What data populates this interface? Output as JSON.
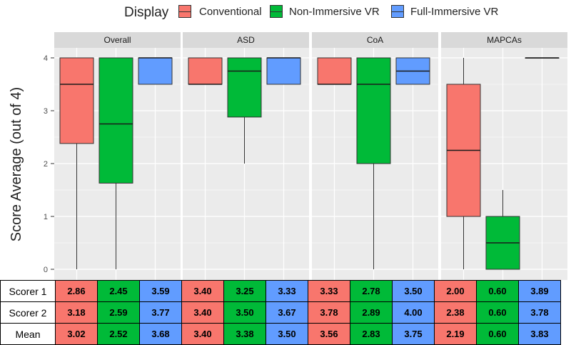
{
  "legend": {
    "title": "Display",
    "items": [
      {
        "label": "Conventional",
        "color": "#F8766D"
      },
      {
        "label": "Non-Immersive VR",
        "color": "#00BA38"
      },
      {
        "label": "Full-Immersive VR",
        "color": "#619CFF"
      }
    ]
  },
  "chart_data": {
    "type": "boxplot",
    "ylabel": "Score Average (out of 4)",
    "ylim": [
      -0.1,
      4.4
    ],
    "yticks": [
      "0",
      "1",
      "2",
      "3",
      "4"
    ],
    "grid": true,
    "legend_position": "top",
    "facets": [
      "Overall",
      "ASD",
      "CoA",
      "MAPCAs"
    ],
    "series": [
      "Conventional",
      "Non-Immersive VR",
      "Full-Immersive VR"
    ],
    "boxes": [
      [
        {
          "min": 0,
          "q1": 2.38,
          "median": 3.5,
          "q3": 4,
          "max": 4
        },
        {
          "min": 0,
          "q1": 1.63,
          "median": 2.75,
          "q3": 4,
          "max": 4
        },
        {
          "min": 3.5,
          "q1": 3.5,
          "median": 4,
          "q3": 4,
          "max": 4
        }
      ],
      [
        {
          "min": 3.5,
          "q1": 3.5,
          "median": 3.5,
          "q3": 4,
          "max": 4
        },
        {
          "min": 2,
          "q1": 2.88,
          "median": 3.75,
          "q3": 4,
          "max": 4
        },
        {
          "min": 3.5,
          "q1": 3.5,
          "median": 4,
          "q3": 4,
          "max": 4
        }
      ],
      [
        {
          "min": 3.5,
          "q1": 3.5,
          "median": 3.5,
          "q3": 4,
          "max": 4
        },
        {
          "min": 0,
          "q1": 2,
          "median": 3.5,
          "q3": 4,
          "max": 4
        },
        {
          "min": 3.5,
          "q1": 3.5,
          "median": 3.75,
          "q3": 4,
          "max": 4
        }
      ],
      [
        {
          "min": 0,
          "q1": 1,
          "median": 2.25,
          "q3": 3.5,
          "max": 4
        },
        {
          "min": 0,
          "q1": 0,
          "median": 0.5,
          "q3": 1,
          "max": 1.5
        },
        {
          "min": 4,
          "q1": 4,
          "median": 4,
          "q3": 4,
          "max": 4
        }
      ]
    ]
  },
  "table": {
    "rows": [
      {
        "label": "Scorer 1",
        "values": [
          "2.86",
          "2.45",
          "3.59",
          "3.40",
          "3.25",
          "3.33",
          "3.33",
          "2.78",
          "3.50",
          "2.00",
          "0.60",
          "3.89"
        ]
      },
      {
        "label": "Scorer 2",
        "values": [
          "3.18",
          "2.59",
          "3.77",
          "3.40",
          "3.50",
          "3.67",
          "3.78",
          "2.89",
          "4.00",
          "2.38",
          "0.60",
          "3.78"
        ]
      },
      {
        "label": "Mean",
        "values": [
          "3.02",
          "2.52",
          "3.68",
          "3.40",
          "3.38",
          "3.50",
          "3.56",
          "2.83",
          "3.75",
          "2.19",
          "0.60",
          "3.83"
        ]
      }
    ]
  }
}
